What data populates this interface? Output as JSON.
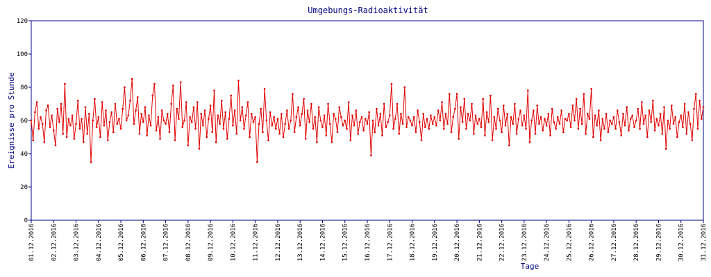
{
  "chart_data": {
    "type": "line",
    "title": "Umgebungs-Radioaktivität",
    "x_label": "Tage",
    "y_label": "Ereignisse pro Stunde",
    "color": "#e00000",
    "ylim": [
      0,
      120
    ],
    "yticks": [
      0,
      20,
      40,
      60,
      80,
      100,
      120
    ],
    "categories": [
      "01.12.2016",
      null,
      null,
      null,
      null,
      null,
      null,
      null,
      null,
      null,
      null,
      null,
      "02.12.2016",
      null,
      null,
      null,
      null,
      null,
      null,
      null,
      null,
      null,
      null,
      null,
      "03.12.2016",
      null,
      null,
      null,
      null,
      null,
      null,
      null,
      null,
      null,
      null,
      null,
      "04.12.2016",
      null,
      null,
      null,
      null,
      null,
      null,
      null,
      null,
      null,
      null,
      null,
      "05.12.2016",
      null,
      null,
      null,
      null,
      null,
      null,
      null,
      null,
      null,
      null,
      null,
      "06.12.2016",
      null,
      null,
      null,
      null,
      null,
      null,
      null,
      null,
      null,
      null,
      null,
      "07.12.2016",
      null,
      null,
      null,
      null,
      null,
      null,
      null,
      null,
      null,
      null,
      null,
      "08.12.2016",
      null,
      null,
      null,
      null,
      null,
      null,
      null,
      null,
      null,
      null,
      null,
      "09.12.2016",
      null,
      null,
      null,
      null,
      null,
      null,
      null,
      null,
      null,
      null,
      null,
      "10.12.2016",
      null,
      null,
      null,
      null,
      null,
      null,
      null,
      null,
      null,
      null,
      null,
      "11.12.2016",
      null,
      null,
      null,
      null,
      null,
      null,
      null,
      null,
      null,
      null,
      null,
      "12.12.2016",
      null,
      null,
      null,
      null,
      null,
      null,
      null,
      null,
      null,
      null,
      null,
      "13.12.2016",
      null,
      null,
      null,
      null,
      null,
      null,
      null,
      null,
      null,
      null,
      null,
      "14.12.2016",
      null,
      null,
      null,
      null,
      null,
      null,
      null,
      null,
      null,
      null,
      null,
      "15.12.2016",
      null,
      null,
      null,
      null,
      null,
      null,
      null,
      null,
      null,
      null,
      null,
      "16.12.2016",
      null,
      null,
      null,
      null,
      null,
      null,
      null,
      null,
      null,
      null,
      null,
      "17.12.2016",
      null,
      null,
      null,
      null,
      null,
      null,
      null,
      null,
      null,
      null,
      null,
      "18.12.2016",
      null,
      null,
      null,
      null,
      null,
      null,
      null,
      null,
      null,
      null,
      null,
      "19.12.2016",
      null,
      null,
      null,
      null,
      null,
      null,
      null,
      null,
      null,
      null,
      null,
      "20.12.2016",
      null,
      null,
      null,
      null,
      null,
      null,
      null,
      null,
      null,
      null,
      null,
      "21.12.2016",
      null,
      null,
      null,
      null,
      null,
      null,
      null,
      null,
      null,
      null,
      null,
      "22.12.2016",
      null,
      null,
      null,
      null,
      null,
      null,
      null,
      null,
      null,
      null,
      null,
      "23.12.2016",
      null,
      null,
      null,
      null,
      null,
      null,
      null,
      null,
      null,
      null,
      null,
      "24.12.2016",
      null,
      null,
      null,
      null,
      null,
      null,
      null,
      null,
      null,
      null,
      null,
      "25.12.2016",
      null,
      null,
      null,
      null,
      null,
      null,
      null,
      null,
      null,
      null,
      null,
      "26.12.2016",
      null,
      null,
      null,
      null,
      null,
      null,
      null,
      null,
      null,
      null,
      null,
      "27.12.2016",
      null,
      null,
      null,
      null,
      null,
      null,
      null,
      null,
      null,
      null,
      null,
      "28.12.2016",
      null,
      null,
      null,
      null,
      null,
      null,
      null,
      null,
      null,
      null,
      null,
      "29.12.2016",
      null,
      null,
      null,
      null,
      null,
      null,
      null,
      null,
      null,
      null,
      null,
      "30.12.2016",
      null,
      null,
      null,
      null,
      null,
      null,
      null,
      null,
      null,
      null,
      null,
      "31.12.2016"
    ],
    "values": [
      60,
      48,
      65,
      71,
      55,
      62,
      58,
      47,
      66,
      69,
      56,
      63,
      54,
      45,
      67,
      59,
      70,
      52,
      82,
      50,
      61,
      57,
      63,
      49,
      58,
      72,
      55,
      61,
      47,
      68,
      52,
      64,
      35,
      60,
      73,
      56,
      62,
      50,
      71,
      57,
      66,
      48,
      59,
      65,
      53,
      70,
      58,
      61,
      55,
      67,
      80,
      60,
      63,
      72,
      85,
      58,
      66,
      74,
      52,
      64,
      59,
      68,
      51,
      63,
      57,
      75,
      82,
      54,
      62,
      49,
      66,
      60,
      58,
      64,
      53,
      70,
      81,
      48,
      67,
      61,
      83,
      56,
      60,
      71,
      45,
      62,
      59,
      68,
      55,
      71,
      43,
      64,
      57,
      66,
      50,
      61,
      69,
      53,
      78,
      47,
      63,
      58,
      72,
      55,
      65,
      49,
      61,
      75,
      57,
      66,
      52,
      84,
      60,
      68,
      55,
      63,
      71,
      50,
      64,
      59,
      62,
      35,
      58,
      67,
      53,
      79,
      60,
      48,
      65,
      57,
      62,
      55,
      61,
      52,
      64,
      50,
      58,
      66,
      55,
      60,
      76,
      53,
      62,
      68,
      57,
      64,
      73,
      49,
      66,
      59,
      70,
      55,
      62,
      47,
      68,
      60,
      56,
      63,
      51,
      70,
      58,
      47,
      64,
      61,
      53,
      68,
      62,
      57,
      60,
      55,
      71,
      48,
      63,
      57,
      66,
      52,
      59,
      62,
      54,
      61,
      58,
      65,
      39,
      60,
      53,
      67,
      57,
      64,
      51,
      70,
      56,
      59,
      63,
      82,
      55,
      61,
      70,
      52,
      64,
      58,
      80,
      56,
      62,
      60,
      57,
      62,
      53,
      66,
      59,
      48,
      64,
      56,
      61,
      55,
      63,
      58,
      62,
      57,
      66,
      60,
      71,
      55,
      64,
      58,
      76,
      53,
      62,
      67,
      76,
      49,
      68,
      59,
      73,
      55,
      64,
      60,
      70,
      52,
      63,
      58,
      61,
      56,
      73,
      51,
      65,
      59,
      75,
      48,
      62,
      55,
      67,
      60,
      53,
      69,
      57,
      64,
      45,
      62,
      58,
      70,
      52,
      61,
      66,
      57,
      63,
      55,
      78,
      47,
      60,
      66,
      52,
      69,
      58,
      62,
      54,
      61,
      57,
      64,
      51,
      67,
      59,
      55,
      62,
      58,
      66,
      53,
      61,
      60,
      64,
      56,
      69,
      60,
      73,
      55,
      67,
      58,
      76,
      52,
      64,
      61,
      79,
      50,
      63,
      57,
      66,
      48,
      61,
      55,
      64,
      53,
      60,
      58,
      62,
      55,
      66,
      59,
      51,
      64,
      57,
      68,
      54,
      61,
      63,
      56,
      60,
      67,
      55,
      71,
      58,
      63,
      50,
      66,
      59,
      72,
      54,
      61,
      57,
      64,
      52,
      68,
      43,
      60,
      55,
      69,
      58,
      62,
      50,
      59,
      63,
      56,
      70,
      52,
      65,
      58,
      48,
      67,
      76,
      55,
      72,
      61,
      68
    ]
  }
}
